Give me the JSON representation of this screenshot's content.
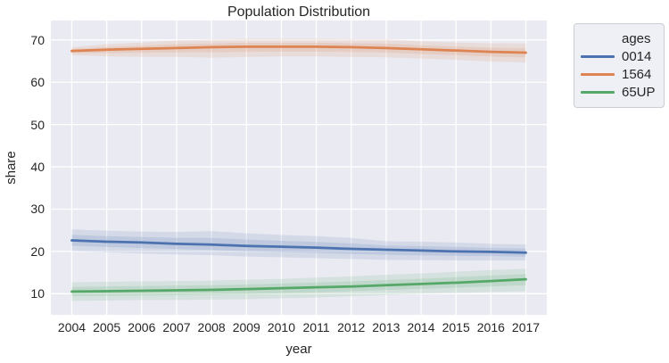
{
  "title": "Population Distribution",
  "axes": {
    "xlabel": "year",
    "ylabel": "share",
    "x_ticks": [
      2004,
      2005,
      2006,
      2007,
      2008,
      2009,
      2010,
      2011,
      2012,
      2013,
      2014,
      2015,
      2016,
      2017
    ],
    "y_ticks": [
      10,
      20,
      30,
      40,
      50,
      60,
      70
    ],
    "xlim": [
      2003.4,
      2017.6
    ],
    "ylim": [
      5.0,
      74.6
    ]
  },
  "legend": {
    "title": "ages",
    "position": "outside-upper-right"
  },
  "colors": {
    "figure_background": "#ffffff",
    "plot_background": "#eaeaf2",
    "grid": "#ffffff",
    "text": "#262626",
    "legend_background": "#eef0f6",
    "legend_border": "#cacdd4",
    "series_blue": "#4c72b0",
    "series_orange": "#dd8452",
    "series_green": "#55a868"
  },
  "chart_data": {
    "type": "line",
    "title": "Population Distribution",
    "xlabel": "year",
    "ylabel": "share",
    "grid": true,
    "legend_title": "ages",
    "legend_position": "outside upper right",
    "xlim": [
      2003.4,
      2017.6
    ],
    "ylim": [
      5.0,
      74.6
    ],
    "x": [
      2004,
      2005,
      2006,
      2007,
      2008,
      2009,
      2010,
      2011,
      2012,
      2013,
      2014,
      2015,
      2016,
      2017
    ],
    "series": [
      {
        "name": "0014",
        "color": "#4c72b0",
        "values": [
          22.6,
          22.3,
          22.1,
          21.8,
          21.6,
          21.3,
          21.1,
          20.9,
          20.6,
          20.4,
          20.2,
          20.0,
          19.9,
          19.7
        ],
        "band_high": [
          25.2,
          24.9,
          24.7,
          24.6,
          24.8,
          24.3,
          23.9,
          23.6,
          23.2,
          22.4,
          22.3,
          22.1,
          21.8,
          21.6
        ],
        "band_low": [
          20.1,
          19.8,
          19.5,
          19.3,
          19.1,
          18.8,
          18.6,
          18.4,
          18.2,
          18.0,
          17.95,
          17.9,
          17.9,
          17.85
        ]
      },
      {
        "name": "1564",
        "color": "#dd8452",
        "values": [
          67.4,
          67.7,
          67.9,
          68.1,
          68.3,
          68.4,
          68.4,
          68.4,
          68.3,
          68.1,
          67.8,
          67.5,
          67.2,
          67.0
        ],
        "band_high": [
          68.3,
          69.0,
          69.4,
          69.9,
          70.1,
          70.3,
          70.3,
          70.3,
          70.2,
          70.2,
          69.7,
          69.4,
          69.2,
          69.2
        ],
        "band_low": [
          66.4,
          66.1,
          66.0,
          66.0,
          65.8,
          66.0,
          66.1,
          66.1,
          66.0,
          65.9,
          65.6,
          65.3,
          64.9,
          64.7
        ]
      },
      {
        "name": "65UP",
        "color": "#55a868",
        "values": [
          10.5,
          10.6,
          10.7,
          10.8,
          10.9,
          11.1,
          11.3,
          11.5,
          11.7,
          12.0,
          12.3,
          12.6,
          13.0,
          13.4
        ],
        "band_high": [
          12.7,
          12.8,
          12.9,
          13.0,
          13.1,
          13.3,
          13.5,
          13.8,
          14.1,
          14.5,
          14.8,
          15.2,
          15.6,
          15.9
        ],
        "band_low": [
          8.3,
          8.4,
          8.5,
          8.5,
          8.6,
          8.7,
          8.9,
          9.1,
          9.4,
          9.7,
          10.0,
          10.2,
          10.4,
          10.6
        ]
      }
    ]
  }
}
